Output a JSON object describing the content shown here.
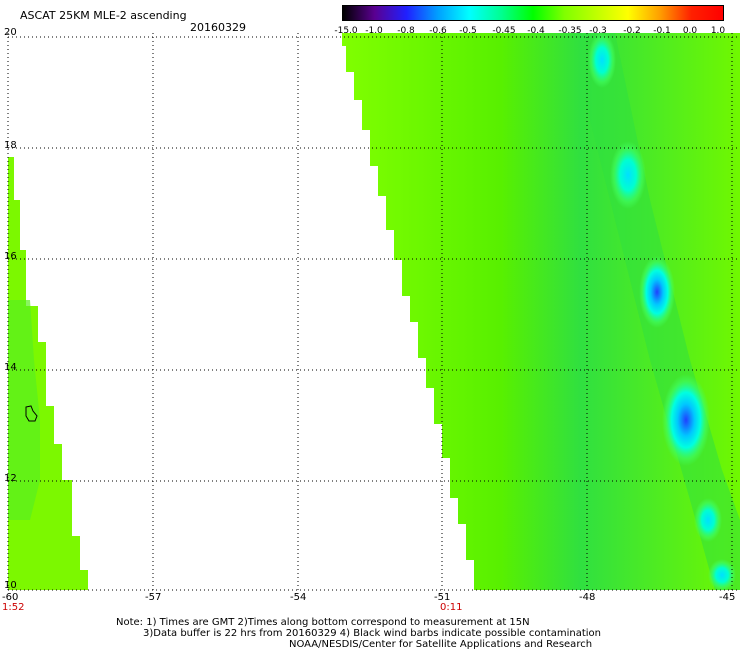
{
  "header": {
    "title": "ASCAT 25KM MLE-2 ascending",
    "date": "20160329"
  },
  "colorbar": {
    "ticks": [
      "-15.0",
      "-1.0",
      "-0.8",
      "-0.6",
      "-0.5",
      "-0.45",
      "-0.4",
      "-0.35",
      "-0.3",
      "-0.2",
      "-0.1",
      "0.0",
      "1.0"
    ],
    "colors": [
      "#000000",
      "#5a0090",
      "#2020ff",
      "#00a0ff",
      "#00ffff",
      "#00ff90",
      "#00ff00",
      "#80ff00",
      "#c0ff00",
      "#ffff00",
      "#ffa000",
      "#ff2000",
      "#ff0000"
    ]
  },
  "map": {
    "lat_labels": [
      "20",
      "18",
      "16",
      "14",
      "12",
      "10"
    ],
    "lon_labels": [
      "-60",
      "-57",
      "-54",
      "-51",
      "-48",
      "-45"
    ],
    "time_labels": [
      "1:52",
      "0:11"
    ],
    "colors": {
      "field": "#80ff00",
      "field_dark": "#40e010",
      "cyan": "#00ffff",
      "blue": "#2040ff",
      "grid": "#000000",
      "time": "#cc0000"
    }
  },
  "footer": {
    "line1": "Note: 1) Times are GMT 2)Times along bottom correspond to measurement at 15N",
    "line2": "3)Data buffer is 22 hrs from 20160329 4) Black wind barbs indicate possible contamination",
    "line3": "NOAA/NESDIS/Center for Satellite Applications and Research"
  }
}
